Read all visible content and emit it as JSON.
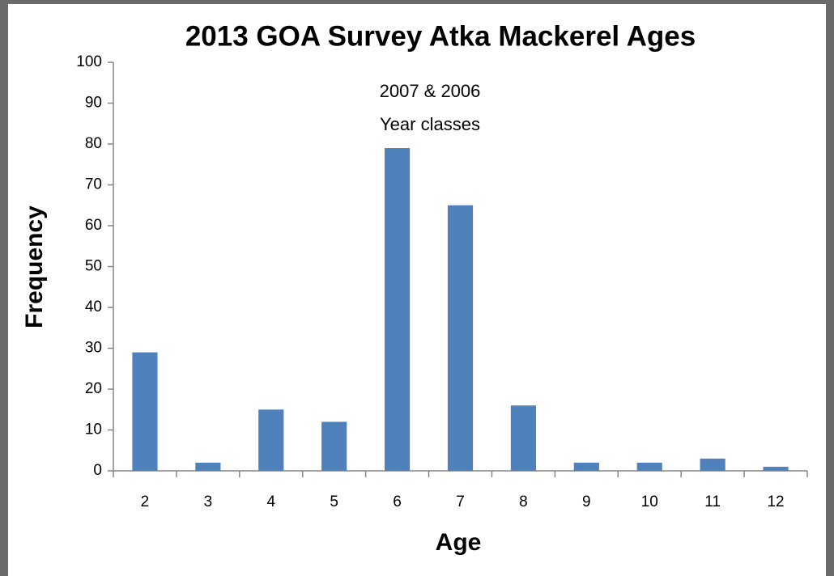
{
  "chart_data": {
    "type": "bar",
    "title": "2013 GOA Survey Atka Mackerel Ages",
    "x_label": "Age",
    "y_label": "Frequency",
    "annotation": [
      "2007 & 2006",
      "Year classes"
    ],
    "categories": [
      "2",
      "3",
      "4",
      "5",
      "6",
      "7",
      "8",
      "9",
      "10",
      "11",
      "12"
    ],
    "values": [
      29,
      2,
      15,
      12,
      79,
      65,
      16,
      2,
      2,
      3,
      1
    ],
    "color": "#4f81bd",
    "ylim": [
      0,
      100
    ],
    "yticks": [
      0,
      10,
      20,
      30,
      40,
      50,
      60,
      70,
      80,
      90,
      100
    ],
    "grid": false
  }
}
